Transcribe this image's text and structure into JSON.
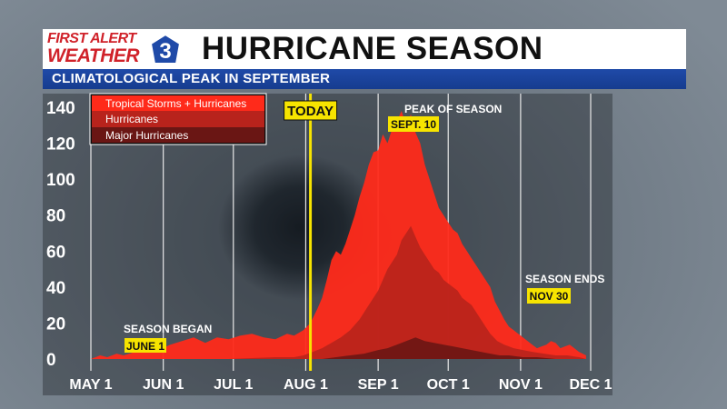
{
  "header": {
    "logo_line1": "FIRST ALERT",
    "logo_line2": "WEATHER",
    "logo_number": "3",
    "title": "HURRICANE SEASON",
    "subtitle": "CLIMATOLOGICAL PEAK IN SEPTEMBER"
  },
  "colors": {
    "tropical": "#ff2a1a",
    "hurricanes": "#b8231c",
    "major": "#6a1614",
    "today": "#f7e400",
    "tag": "#f7e400",
    "header_blue": "#1f4aa8"
  },
  "chart_data": {
    "type": "area",
    "title": "HURRICANE SEASON",
    "subtitle": "CLIMATOLOGICAL PEAK IN SEPTEMBER",
    "x_tick_labels": [
      "MAY 1",
      "JUN 1",
      "JUL 1",
      "AUG 1",
      "SEP 1",
      "OCT 1",
      "NOV 1",
      "DEC 1"
    ],
    "x_tick_days": [
      1,
      32,
      62,
      93,
      124,
      154,
      185,
      215
    ],
    "y_tick_labels": [
      "0",
      "20",
      "40",
      "60",
      "80",
      "100",
      "120",
      "140"
    ],
    "ylim": [
      0,
      140
    ],
    "xlim": [
      1,
      215
    ],
    "grid": "vertical",
    "legend_position": "top-left",
    "series": [
      {
        "name": "Tropical Storms + Hurricanes",
        "x": [
          1,
          5,
          8,
          12,
          15,
          20,
          25,
          30,
          35,
          40,
          45,
          50,
          55,
          60,
          65,
          70,
          75,
          80,
          85,
          88,
          92,
          95,
          98,
          100,
          102,
          104,
          106,
          108,
          110,
          112,
          114,
          116,
          118,
          120,
          122,
          124,
          126,
          128,
          130,
          132,
          134,
          136,
          138,
          140,
          142,
          144,
          146,
          148,
          150,
          152,
          154,
          156,
          158,
          160,
          162,
          164,
          166,
          168,
          170,
          172,
          174,
          176,
          178,
          180,
          182,
          184,
          186,
          188,
          190,
          192,
          194,
          196,
          198,
          200,
          202,
          204,
          206,
          208,
          210,
          213
        ],
        "values": [
          0,
          2,
          1,
          3,
          2,
          4,
          6,
          5,
          8,
          10,
          12,
          9,
          12,
          11,
          13,
          14,
          12,
          11,
          14,
          13,
          16,
          20,
          28,
          34,
          44,
          55,
          60,
          58,
          64,
          72,
          80,
          90,
          98,
          108,
          115,
          116,
          125,
          120,
          128,
          132,
          138,
          130,
          136,
          126,
          120,
          108,
          100,
          92,
          84,
          80,
          76,
          72,
          70,
          64,
          60,
          56,
          52,
          48,
          44,
          40,
          32,
          27,
          22,
          18,
          16,
          14,
          12,
          10,
          8,
          6,
          7,
          8,
          10,
          9,
          6,
          7,
          8,
          6,
          4,
          2
        ]
      },
      {
        "name": "Hurricanes",
        "x": [
          1,
          30,
          60,
          80,
          88,
          92,
          96,
          100,
          104,
          108,
          112,
          116,
          120,
          124,
          126,
          128,
          130,
          132,
          134,
          136,
          138,
          140,
          142,
          144,
          146,
          148,
          150,
          152,
          154,
          156,
          158,
          160,
          162,
          164,
          166,
          168,
          170,
          172,
          175,
          178,
          182,
          186,
          190,
          195,
          200,
          205,
          210,
          213
        ],
        "values": [
          0,
          0,
          0,
          1,
          1,
          2,
          4,
          6,
          9,
          12,
          16,
          22,
          30,
          38,
          44,
          50,
          54,
          58,
          66,
          70,
          74,
          68,
          62,
          58,
          54,
          50,
          48,
          44,
          42,
          40,
          38,
          34,
          32,
          30,
          26,
          22,
          18,
          14,
          10,
          8,
          6,
          5,
          4,
          3,
          2,
          2,
          1,
          0
        ]
      },
      {
        "name": "Major Hurricanes",
        "x": [
          1,
          60,
          90,
          100,
          106,
          112,
          118,
          124,
          128,
          132,
          136,
          140,
          144,
          148,
          152,
          156,
          160,
          164,
          168,
          172,
          176,
          180,
          186,
          192,
          200,
          213
        ],
        "values": [
          0,
          0,
          0,
          0,
          1,
          2,
          3,
          5,
          6,
          8,
          10,
          12,
          10,
          9,
          8,
          7,
          6,
          5,
          4,
          3,
          2,
          2,
          1,
          1,
          0,
          0
        ]
      }
    ],
    "today_day": 95,
    "annotations": [
      {
        "label": "SEASON BEGAN",
        "tag": "JUNE 1"
      },
      {
        "label": "PEAK OF SEASON",
        "tag": "SEPT. 10"
      },
      {
        "label": "SEASON ENDS",
        "tag": "NOV 30"
      },
      {
        "label": "TODAY"
      }
    ]
  }
}
